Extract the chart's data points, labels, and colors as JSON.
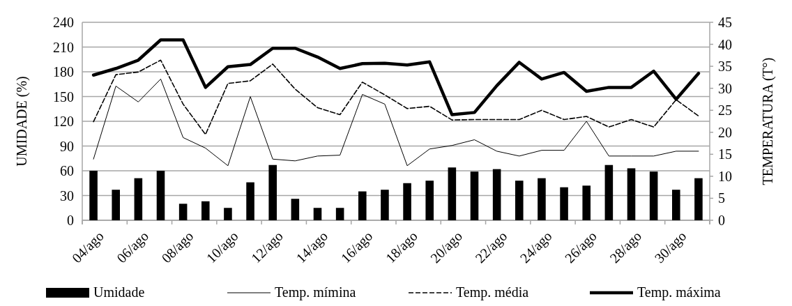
{
  "chart_data": {
    "type": "bar",
    "ylabel": "UMIDADE (%)",
    "y2label": "TEMPERATURA (T°)",
    "categories": [
      "04/ago",
      null,
      "06/ago",
      null,
      "08/ago",
      null,
      "10/ago",
      null,
      "12/ago",
      null,
      "14/ago",
      null,
      "16/ago",
      null,
      "18/ago",
      null,
      "20/ago",
      null,
      "22/ago",
      null,
      "24/ago",
      null,
      "26/ago",
      null,
      "28/ago",
      null,
      "30/ago",
      null
    ],
    "series": [
      {
        "name": "Umidade",
        "color": "#000000",
        "values": [
          60,
          37,
          51,
          60,
          20,
          23,
          15,
          46,
          67,
          26,
          15,
          15,
          35,
          37,
          45,
          48,
          64,
          59,
          62,
          48,
          51,
          40,
          42,
          67,
          63,
          59,
          37,
          51
        ]
      },
      {
        "name": "Temp. mímina",
        "type": "line",
        "axis": "y2",
        "color": "#000000",
        "line_style": "solid",
        "values": [
          13.9,
          30.5,
          26.9,
          32.1,
          18.8,
          16.4,
          12.4,
          28.1,
          13.9,
          13.5,
          14.6,
          14.8,
          28.6,
          26.4,
          12.4,
          16.2,
          17.0,
          18.3,
          15.7,
          14.6,
          15.9,
          15.9,
          22.5,
          14.6,
          14.6,
          14.6,
          15.7,
          15.7
        ]
      },
      {
        "name": "Temp. média",
        "type": "line",
        "axis": "y2",
        "color": "#000000",
        "line_style": "dashed",
        "values": [
          22.4,
          33.1,
          33.7,
          36.4,
          26.4,
          19.5,
          31.1,
          31.7,
          35.5,
          29.8,
          25.6,
          24.0,
          31.4,
          28.5,
          25.4,
          25.9,
          22.8,
          22.9,
          22.9,
          22.9,
          25.0,
          22.9,
          23.6,
          21.2,
          22.9,
          21.2,
          27.4,
          23.7
        ]
      },
      {
        "name": "Temp. máxima",
        "type": "line",
        "axis": "y2",
        "color": "#000000",
        "line_style": "solid",
        "values": [
          33.0,
          34.5,
          36.4,
          41.0,
          41.0,
          30.2,
          34.9,
          35.4,
          39.1,
          39.1,
          37.1,
          34.5,
          35.6,
          35.7,
          35.3,
          36.0,
          24.0,
          24.5,
          30.6,
          35.9,
          32.1,
          33.6,
          29.3,
          30.2,
          30.2,
          33.9,
          27.5,
          33.4
        ]
      }
    ],
    "ylim": [
      0,
      240
    ],
    "yticks": [
      0,
      30,
      60,
      90,
      120,
      150,
      180,
      210,
      240
    ],
    "y2lim": [
      0,
      45
    ],
    "y2ticks": [
      0,
      5,
      10,
      15,
      20,
      25,
      30,
      35,
      40,
      45
    ],
    "grid": "y",
    "legend": "bottom"
  }
}
